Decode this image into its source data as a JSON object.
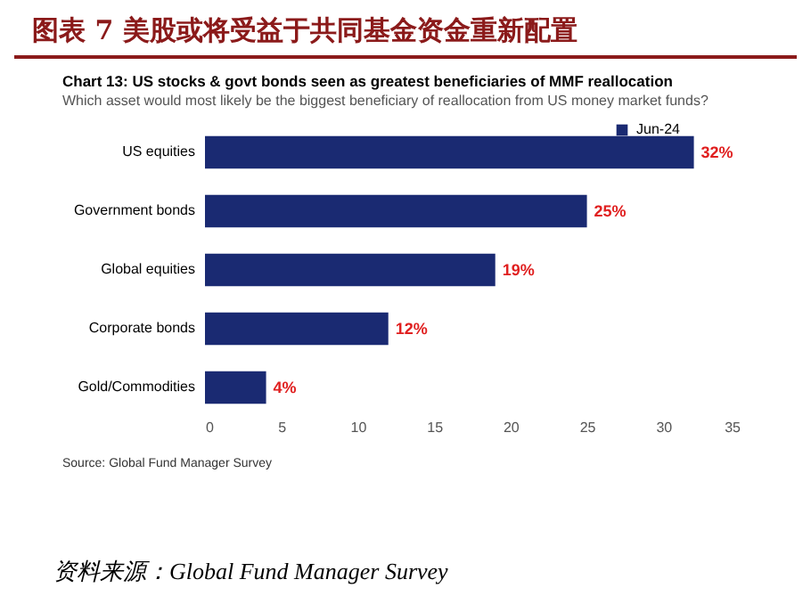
{
  "chart_data": {
    "type": "bar",
    "orientation": "horizontal",
    "title": "图表 7   美股或将受益于共同基金资金重新配置",
    "subtitle": [
      "Chart 13: US stocks & govt bonds seen as greatest beneficiaries of MMF reallocation",
      "Which asset would most likely be the biggest beneficiary of reallocation from US money market funds?"
    ],
    "categories": [
      "US equities",
      "Government bonds",
      "Global equities",
      "Corporate bonds",
      "Gold/Commodities"
    ],
    "series": [
      {
        "name": "Jun-24",
        "color": "#1a2a72",
        "values": [
          32,
          25,
          19,
          12,
          4
        ]
      }
    ],
    "value_labels": [
      "32%",
      "25%",
      "19%",
      "12%",
      "4%"
    ],
    "xlim": [
      0,
      35
    ],
    "xticks": [
      0,
      5,
      10,
      15,
      20,
      25,
      30,
      35
    ],
    "legend": "right",
    "grid": false,
    "annotations": [
      "Source: Global Fund Manager Survey",
      "资料来源：Global Fund Manager Survey"
    ]
  }
}
